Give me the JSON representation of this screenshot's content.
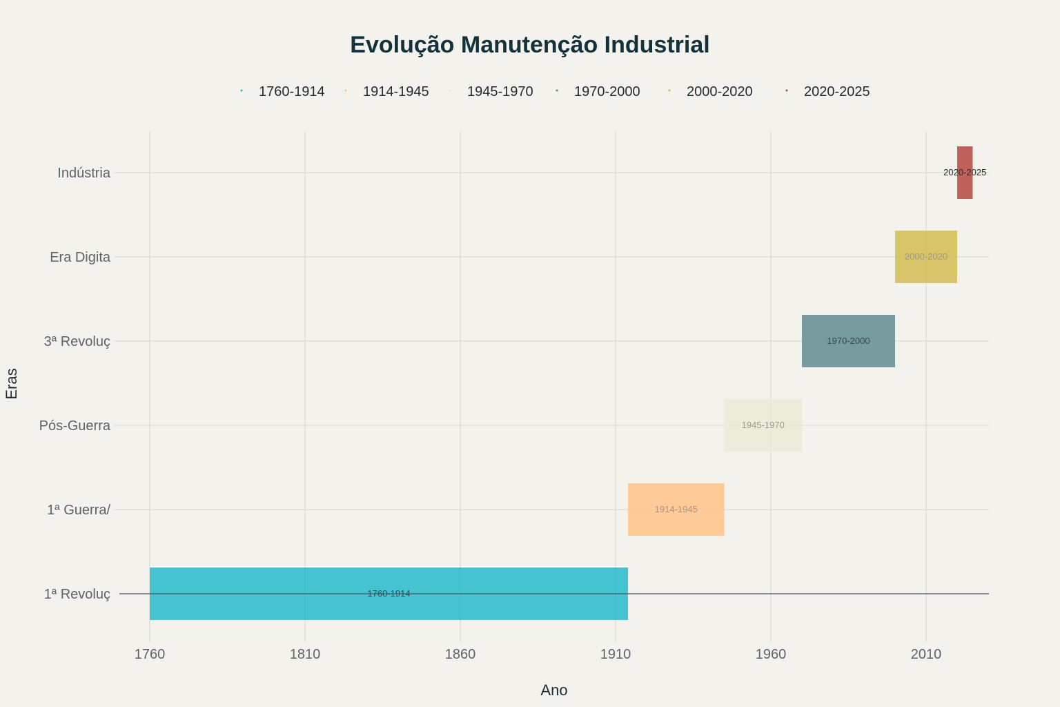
{
  "chart_data": {
    "type": "bar",
    "orientation": "horizontal-range",
    "title": "Evolução Manutenção Industrial",
    "xlabel": "Ano",
    "ylabel": "Eras",
    "xlim": [
      1750,
      2030
    ],
    "x_ticks": [
      "1760",
      "1810",
      "1860",
      "1910",
      "1960",
      "2010"
    ],
    "categories": [
      "1ª Revoluç",
      "1ª Guerra/",
      "Pós-Guerra",
      "3ª Revoluç",
      "Era Digita",
      "Indústria"
    ],
    "legend_position": "top",
    "grid": true,
    "series": [
      {
        "name": "1760-1914",
        "category": "1ª Revoluç",
        "start": 1760,
        "end": 1914,
        "label": "1760-1914",
        "color": "#1fb8c9"
      },
      {
        "name": "1914-1945",
        "category": "1ª Guerra/",
        "start": 1914,
        "end": 1945,
        "label": "1914-1945",
        "color": "#ffc185"
      },
      {
        "name": "1945-1970",
        "category": "Pós-Guerra",
        "start": 1945,
        "end": 1970,
        "label": "1945-1970",
        "color": "#ece9d4"
      },
      {
        "name": "1970-2000",
        "category": "3ª Revoluç",
        "start": 1970,
        "end": 2000,
        "label": "1970-2000",
        "color": "#5d878f"
      },
      {
        "name": "2000-2020",
        "category": "Era Digita",
        "start": 2000,
        "end": 2020,
        "label": "2000-2020",
        "color": "#d2ba4c"
      },
      {
        "name": "2020-2025",
        "category": "Indústria",
        "start": 2020,
        "end": 2025,
        "label": "2020-2025",
        "color": "#b4413c"
      }
    ]
  }
}
